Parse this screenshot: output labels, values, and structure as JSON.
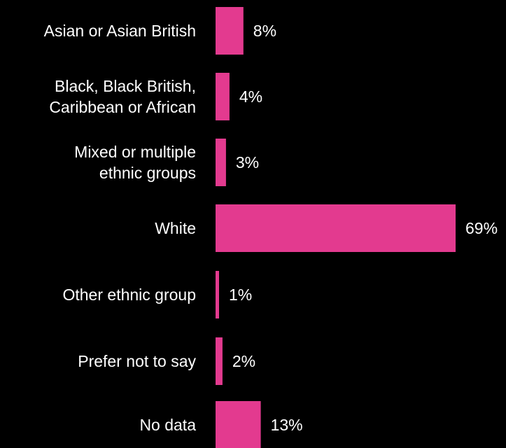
{
  "colors": {
    "background": "#000000",
    "bar": "#e33a8f",
    "text": "#ffffff"
  },
  "chart_data": {
    "type": "bar",
    "orientation": "horizontal",
    "categories": [
      [
        "Asian or Asian British"
      ],
      [
        "Black, Black British,",
        "Caribbean or African"
      ],
      [
        "Mixed or multiple",
        "ethnic groups"
      ],
      [
        "White"
      ],
      [
        "Other ethnic group"
      ],
      [
        "Prefer not to say"
      ],
      [
        "No data"
      ]
    ],
    "values": [
      8,
      4,
      3,
      69,
      1,
      2,
      13
    ],
    "value_labels": [
      "8%",
      "4%",
      "3%",
      "69%",
      "1%",
      "2%",
      "13%"
    ],
    "unit": "%",
    "xlim": [
      0,
      69
    ],
    "grid": false,
    "legend": "none"
  }
}
